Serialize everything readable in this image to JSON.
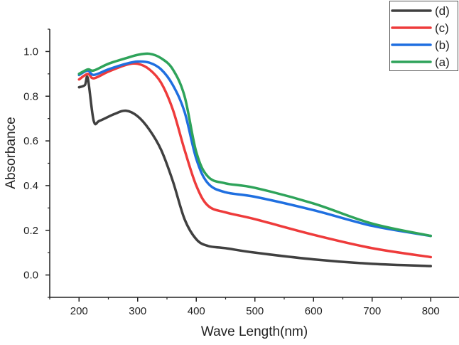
{
  "chart_data": {
    "type": "line",
    "title": "",
    "xlabel": "Wave Length(nm)",
    "ylabel": "Absorbance",
    "xlim": [
      150,
      850
    ],
    "ylim": [
      -0.1,
      1.1
    ],
    "xticks": [
      200,
      300,
      400,
      500,
      600,
      700,
      800
    ],
    "yticks": [
      0.0,
      0.2,
      0.4,
      0.6,
      0.8,
      1.0
    ],
    "grid": false,
    "legend_position": "top-right",
    "series": [
      {
        "name": "(d)",
        "color": "#404040",
        "x": [
          200,
          210,
          215,
          225,
          235,
          260,
          280,
          300,
          320,
          340,
          360,
          380,
          400,
          420,
          450,
          500,
          600,
          700,
          800
        ],
        "y": [
          0.84,
          0.85,
          0.88,
          0.69,
          0.69,
          0.72,
          0.735,
          0.71,
          0.65,
          0.56,
          0.42,
          0.25,
          0.16,
          0.13,
          0.12,
          0.1,
          0.07,
          0.05,
          0.04
        ]
      },
      {
        "name": "(c)",
        "color": "#ee3b3b",
        "x": [
          200,
          215,
          225,
          250,
          280,
          300,
          320,
          340,
          360,
          380,
          400,
          420,
          450,
          500,
          600,
          700,
          800
        ],
        "y": [
          0.875,
          0.9,
          0.88,
          0.91,
          0.94,
          0.945,
          0.92,
          0.86,
          0.74,
          0.56,
          0.4,
          0.31,
          0.28,
          0.25,
          0.18,
          0.12,
          0.08
        ]
      },
      {
        "name": "(b)",
        "color": "#1f6fe0",
        "x": [
          200,
          215,
          225,
          250,
          280,
          300,
          320,
          340,
          360,
          380,
          400,
          420,
          450,
          500,
          600,
          700,
          800
        ],
        "y": [
          0.895,
          0.915,
          0.895,
          0.92,
          0.945,
          0.955,
          0.95,
          0.92,
          0.85,
          0.73,
          0.52,
          0.41,
          0.37,
          0.35,
          0.29,
          0.22,
          0.175
        ]
      },
      {
        "name": "(a)",
        "color": "#2ea35a",
        "x": [
          200,
          215,
          225,
          250,
          280,
          300,
          320,
          340,
          360,
          380,
          400,
          420,
          450,
          500,
          600,
          700,
          800
        ],
        "y": [
          0.9,
          0.92,
          0.915,
          0.945,
          0.97,
          0.985,
          0.99,
          0.97,
          0.92,
          0.8,
          0.55,
          0.44,
          0.41,
          0.39,
          0.32,
          0.23,
          0.175
        ]
      }
    ]
  }
}
